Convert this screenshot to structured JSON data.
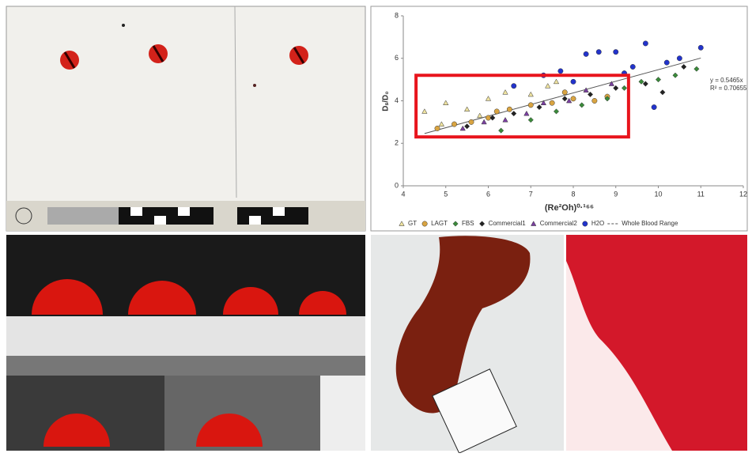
{
  "chart_data": {
    "type": "scatter",
    "xlabel": "(Re²Oh)⁰·¹⁶⁶",
    "ylabel": "Dₛ/D₀",
    "xlim": [
      4,
      12
    ],
    "xticks": [
      4,
      5,
      6,
      7,
      8,
      9,
      10,
      11,
      12
    ],
    "ylim": [
      0,
      8
    ],
    "yticks": [
      0,
      2,
      4,
      6,
      8
    ],
    "annotations": [
      "y = 0.5465x",
      "R² = 0.70655"
    ],
    "trendline": {
      "name": "Whole Blood Range",
      "slope": 0.5465,
      "color": "#555555"
    },
    "highlight": {
      "xlim": [
        4.3,
        9.3
      ],
      "ylim": [
        2.3,
        5.2
      ],
      "color": "#e8141c"
    },
    "legend": "bottom",
    "series": [
      {
        "name": "GT",
        "color": "#efe3a0",
        "marker": "triangle",
        "x": [
          4.5,
          5.0,
          5.5,
          6.0,
          6.4,
          7.0,
          7.4,
          7.6,
          5.8,
          4.9
        ],
        "values": [
          3.5,
          3.9,
          3.6,
          4.1,
          4.4,
          4.3,
          4.7,
          4.9,
          3.3,
          2.9
        ]
      },
      {
        "name": "LAGT",
        "color": "#d9a441",
        "marker": "circle",
        "x": [
          4.8,
          5.2,
          5.6,
          6.0,
          6.5,
          7.0,
          7.5,
          8.0,
          8.5,
          8.8,
          6.2,
          7.8
        ],
        "values": [
          2.7,
          2.9,
          3.0,
          3.2,
          3.6,
          3.8,
          3.9,
          4.1,
          4.0,
          4.2,
          3.5,
          4.4
        ]
      },
      {
        "name": "FBS",
        "color": "#3a8a3a",
        "marker": "diamond",
        "x": [
          6.3,
          7.0,
          7.6,
          8.2,
          8.8,
          9.2,
          9.6,
          10.0,
          10.4,
          10.9
        ],
        "values": [
          2.6,
          3.1,
          3.5,
          3.8,
          4.1,
          4.6,
          4.9,
          5.0,
          5.2,
          5.5
        ]
      },
      {
        "name": "Commercial1",
        "color": "#222222",
        "marker": "diamond",
        "x": [
          5.5,
          6.1,
          6.6,
          7.2,
          7.8,
          8.4,
          9.0,
          9.7,
          10.1,
          10.6
        ],
        "values": [
          2.8,
          3.2,
          3.4,
          3.7,
          4.1,
          4.3,
          4.6,
          4.8,
          4.4,
          5.6
        ]
      },
      {
        "name": "Commercial2",
        "color": "#7a3fa0",
        "marker": "triangle",
        "x": [
          5.4,
          5.9,
          6.4,
          6.9,
          7.3,
          7.9,
          8.3,
          8.9
        ],
        "values": [
          2.7,
          3.0,
          3.1,
          3.4,
          3.9,
          4.0,
          4.5,
          4.8
        ]
      },
      {
        "name": "H2O",
        "color": "#2233cc",
        "marker": "circle",
        "x": [
          6.6,
          7.3,
          7.7,
          8.3,
          8.6,
          9.0,
          9.4,
          9.7,
          9.9,
          10.2,
          10.5,
          11.0,
          8.0,
          9.2
        ],
        "values": [
          4.7,
          5.2,
          5.4,
          6.2,
          6.3,
          6.3,
          5.6,
          6.7,
          3.7,
          5.8,
          6.0,
          6.5,
          4.9,
          5.3
        ]
      }
    ]
  }
}
